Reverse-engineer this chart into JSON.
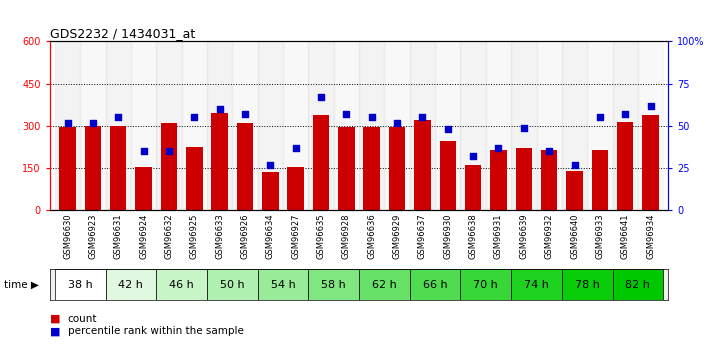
{
  "title": "GDS2232 / 1434031_at",
  "samples": [
    "GSM96630",
    "GSM96923",
    "GSM96631",
    "GSM96924",
    "GSM96632",
    "GSM96925",
    "GSM96633",
    "GSM96926",
    "GSM96634",
    "GSM96927",
    "GSM96635",
    "GSM96928",
    "GSM96636",
    "GSM96929",
    "GSM96637",
    "GSM96930",
    "GSM96638",
    "GSM96931",
    "GSM96639",
    "GSM96932",
    "GSM96640",
    "GSM96933",
    "GSM96641",
    "GSM96934"
  ],
  "time_groups": [
    {
      "label": "38 h",
      "indices": [
        0,
        1
      ]
    },
    {
      "label": "42 h",
      "indices": [
        2,
        3
      ]
    },
    {
      "label": "46 h",
      "indices": [
        4,
        5
      ]
    },
    {
      "label": "50 h",
      "indices": [
        6,
        7
      ]
    },
    {
      "label": "54 h",
      "indices": [
        8,
        9
      ]
    },
    {
      "label": "58 h",
      "indices": [
        10,
        11
      ]
    },
    {
      "label": "62 h",
      "indices": [
        12,
        13
      ]
    },
    {
      "label": "66 h",
      "indices": [
        14,
        15
      ]
    },
    {
      "label": "70 h",
      "indices": [
        16,
        17
      ]
    },
    {
      "label": "74 h",
      "indices": [
        18,
        19
      ]
    },
    {
      "label": "78 h",
      "indices": [
        20,
        21
      ]
    },
    {
      "label": "82 h",
      "indices": [
        22,
        23
      ]
    }
  ],
  "time_group_colors": [
    "#ffffff",
    "#e0f8e0",
    "#c8f5c8",
    "#b0f0b0",
    "#98eb98",
    "#80e680",
    "#68e168",
    "#50dc50",
    "#38d738",
    "#20d220",
    "#08cd08",
    "#00c800"
  ],
  "counts": [
    295,
    298,
    300,
    155,
    310,
    225,
    345,
    310,
    135,
    155,
    340,
    295,
    295,
    295,
    320,
    245,
    160,
    215,
    220,
    215,
    140,
    215,
    315,
    340
  ],
  "percentile_ranks": [
    52,
    52,
    55,
    35,
    35,
    55,
    60,
    57,
    27,
    37,
    67,
    57,
    55,
    52,
    55,
    48,
    32,
    37,
    49,
    35,
    27,
    55,
    57,
    62
  ],
  "ylim_left": [
    0,
    600
  ],
  "ylim_right": [
    0,
    100
  ],
  "yticks_left": [
    0,
    150,
    300,
    450,
    600
  ],
  "yticks_right": [
    0,
    25,
    50,
    75,
    100
  ],
  "ytick_right_labels": [
    "0",
    "25",
    "50",
    "75",
    "100%"
  ],
  "bar_color": "#cc0000",
  "dot_color": "#0000cc",
  "bg_color": "#ffffff",
  "grid_lines": [
    150,
    300,
    450
  ],
  "legend_count_color": "#cc0000",
  "legend_pct_color": "#0000cc",
  "sample_label_fontsize": 6,
  "time_label_fontsize": 8
}
